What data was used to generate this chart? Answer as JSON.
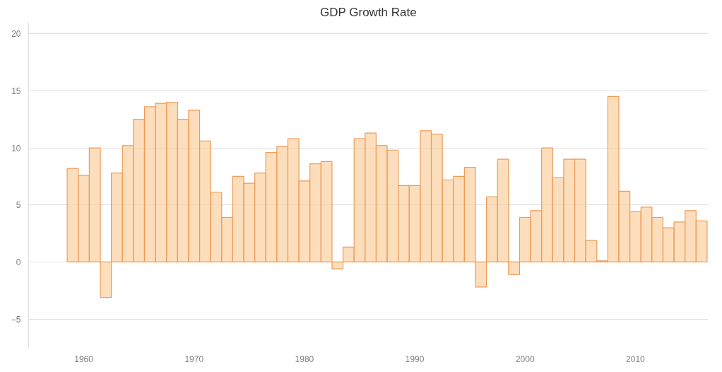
{
  "chart_data": {
    "type": "bar",
    "title": "GDP Growth Rate",
    "x": [
      1959,
      1960,
      1961,
      1962,
      1963,
      1964,
      1965,
      1966,
      1967,
      1968,
      1969,
      1970,
      1971,
      1972,
      1973,
      1974,
      1975,
      1976,
      1977,
      1978,
      1979,
      1980,
      1981,
      1982,
      1983,
      1984,
      1985,
      1986,
      1987,
      1988,
      1989,
      1990,
      1991,
      1992,
      1993,
      1994,
      1995,
      1996,
      1997,
      1998,
      1999,
      2000,
      2001,
      2002,
      2003,
      2004,
      2005,
      2006,
      2007,
      2008,
      2009,
      2010,
      2011,
      2012,
      2013,
      2014,
      2015,
      2016
    ],
    "series": [
      {
        "color": "#fbd3a6",
        "values": [
          8.2,
          7.6,
          10.0,
          -3.1,
          7.8,
          10.2,
          12.5,
          13.6,
          13.9,
          14.0,
          12.5,
          13.3,
          10.6,
          6.1,
          3.9,
          7.5,
          6.9,
          7.8,
          9.6,
          10.1,
          10.8,
          7.1,
          8.6,
          8.8,
          -0.6,
          1.3,
          10.8,
          11.3,
          10.2,
          9.8,
          6.7,
          6.7,
          11.5,
          11.2,
          7.2,
          7.5,
          8.3,
          -2.2,
          5.7,
          9.0,
          -1.1,
          3.9,
          4.5,
          10.0,
          7.4,
          9.0,
          9.0,
          1.9,
          0.1,
          14.5,
          6.2,
          4.4,
          4.8,
          3.9,
          3.0,
          3.5,
          4.5,
          3.6
        ]
      }
    ],
    "xlim": [
      1955,
      2016.6
    ],
    "xticks": [
      1960,
      1970,
      1980,
      1990,
      2000,
      2010
    ],
    "ylim": [
      -7.5,
      21
    ],
    "yticks": [
      -5,
      0,
      5,
      10,
      15,
      20
    ],
    "grid": "y"
  }
}
